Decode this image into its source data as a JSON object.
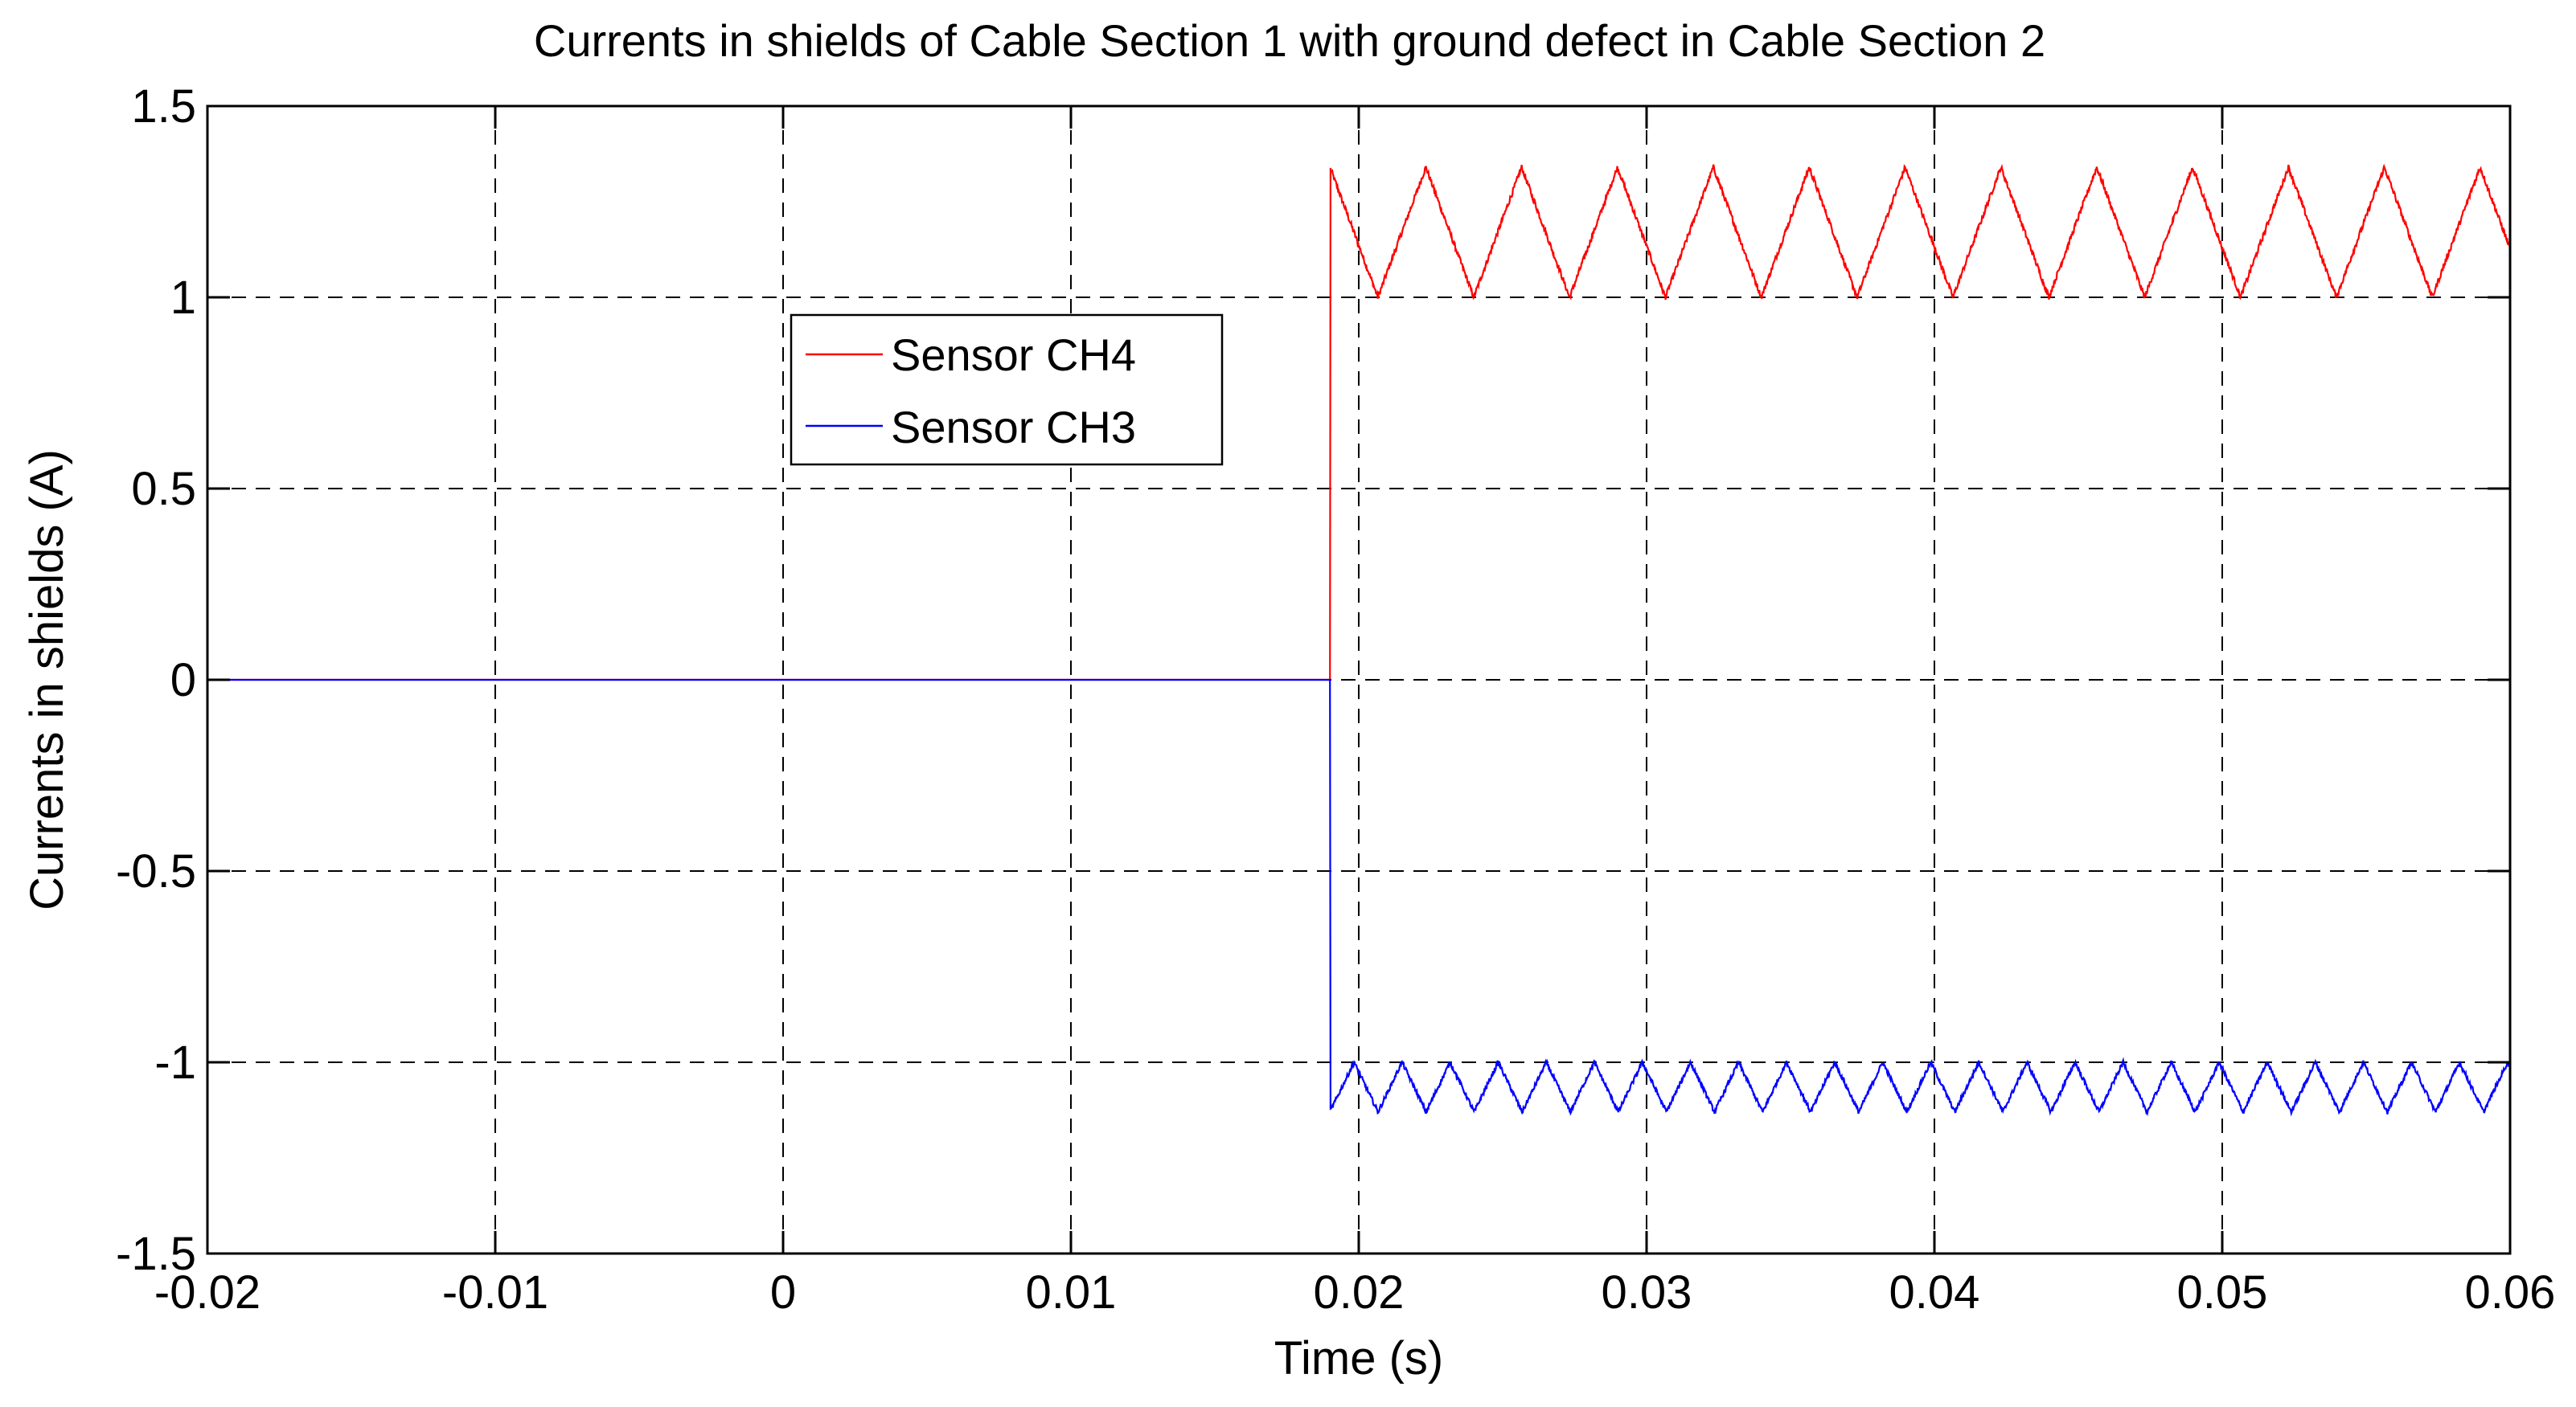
{
  "chart_data": {
    "type": "line",
    "title": "Currents in shields of Cable Section 1 with ground defect in Cable Section 2",
    "xlabel": "Time (s)",
    "ylabel": "Currents in shields (A)",
    "xlim": [
      -0.02,
      0.06
    ],
    "ylim": [
      -1.5,
      1.5
    ],
    "grid": true,
    "legend_position": "upper-left-center",
    "x_ticks": [
      -0.02,
      -0.01,
      0,
      0.01,
      0.02,
      0.03,
      0.04,
      0.05,
      0.06
    ],
    "x_tick_labels": [
      "-0.02",
      "-0.01",
      "0",
      "0.01",
      "0.02",
      "0.03",
      "0.04",
      "0.05",
      "0.06"
    ],
    "y_ticks": [
      -1.5,
      -1,
      -0.5,
      0,
      0.5,
      1,
      1.5
    ],
    "y_tick_labels": [
      "-1.5",
      "-1",
      "-0.5",
      "0",
      "0.5",
      "1",
      "1.5"
    ],
    "series": [
      {
        "name": "Sensor CH4",
        "color": "#ff0000",
        "pre_fault_value": 0,
        "fault_time": 0.019,
        "post_fault_min": 1.0,
        "post_fault_max": 1.34,
        "period": 0.00333,
        "noise": 0.015
      },
      {
        "name": "Sensor CH3",
        "color": "#0000ff",
        "pre_fault_value": 0,
        "fault_time": 0.019,
        "post_fault_min": -1.13,
        "post_fault_max": -1.0,
        "period": 0.00167,
        "noise": 0.012
      }
    ]
  }
}
